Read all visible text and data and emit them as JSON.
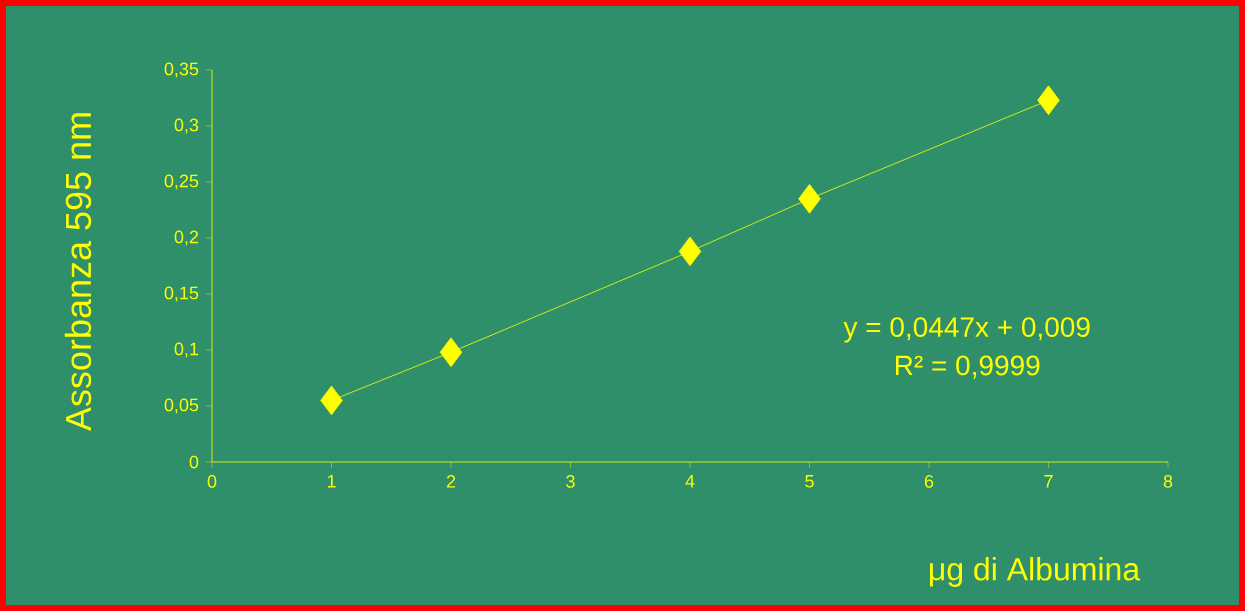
{
  "chart_data": {
    "type": "line",
    "xlabel": "μg di Albumina",
    "ylabel": "Assorbanza 595 nm",
    "x": [
      1,
      2,
      4,
      5,
      7
    ],
    "series": [
      {
        "color": "#ffff00",
        "values": [
          0.055,
          0.098,
          0.188,
          0.235,
          0.323
        ]
      }
    ],
    "xlim": [
      0,
      8
    ],
    "xticks": [
      0,
      1,
      2,
      3,
      4,
      5,
      6,
      7,
      8
    ],
    "ylim": [
      0,
      0.35
    ],
    "yticks": [
      0,
      {
        "value": 0.05,
        "label": "0,05"
      },
      {
        "value": 0.1,
        "label": "0,1"
      },
      {
        "value": 0.15,
        "label": "0,15"
      },
      {
        "value": 0.2,
        "label": "0,2"
      },
      {
        "value": 0.25,
        "label": "0,25"
      },
      {
        "value": 0.3,
        "label": "0,3"
      },
      {
        "value": 0.35,
        "label": "0,35"
      }
    ],
    "annotations": [
      "y = 0,0447x + 0,009",
      "R² = 0,9999"
    ],
    "marker": "diamond",
    "line_style": "solid"
  }
}
